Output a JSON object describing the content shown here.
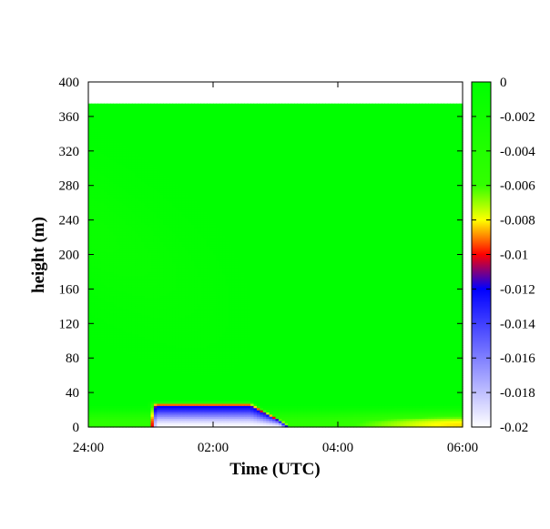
{
  "chart_data": {
    "type": "heatmap",
    "title": "",
    "xlabel": "Time (UTC)",
    "ylabel": "height (m)",
    "x_tick_labels": [
      "24:00",
      "02:00",
      "04:00",
      "06:00"
    ],
    "x_tick_hours": [
      0,
      2,
      4,
      6
    ],
    "xlim_hours": [
      0,
      6
    ],
    "y_ticks": [
      0,
      40,
      80,
      120,
      160,
      200,
      240,
      280,
      320,
      360,
      400
    ],
    "ylim": [
      0,
      400
    ],
    "data_top_height": 375,
    "colorbar": {
      "ticks": [
        0,
        -0.002,
        -0.004,
        -0.006,
        -0.008,
        -0.01,
        -0.012,
        -0.014,
        -0.016,
        -0.018,
        -0.02
      ],
      "tick_labels": [
        "0",
        "-0.002",
        "-0.004",
        "-0.006",
        "-0.008",
        "-0.01",
        "-0.012",
        "-0.014",
        "-0.016",
        "-0.018",
        "-0.02"
      ],
      "range": [
        -0.02,
        0
      ],
      "colormap": [
        {
          "value": 0,
          "color": "#00ff00"
        },
        {
          "value": -0.006,
          "color": "#33ff00"
        },
        {
          "value": -0.008,
          "color": "#ffff00"
        },
        {
          "value": -0.01,
          "color": "#ff0000"
        },
        {
          "value": -0.012,
          "color": "#0000ff"
        },
        {
          "value": -0.02,
          "color": "#ffffff"
        }
      ]
    },
    "features": [
      {
        "name": "strong negative layer",
        "time_start_hours": 1.0,
        "time_end_hours": 3.1,
        "height_top": 30,
        "min_value": -0.02
      },
      {
        "name": "weak negative near-surface layer",
        "time_start_hours": 0.0,
        "time_end_hours": 6.0,
        "height_top": 20,
        "min_value": -0.008
      }
    ],
    "grid": false,
    "legend": "colorbar right"
  }
}
